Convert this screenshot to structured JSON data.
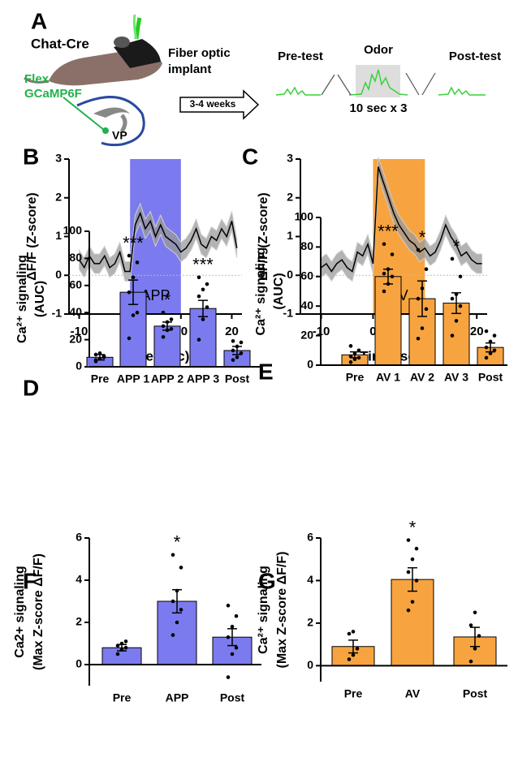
{
  "panel_a": {
    "label": "A",
    "strain": "Chat-Cre",
    "implant": [
      "Fiber optic",
      "implant"
    ],
    "virus": [
      "Flex-",
      "GCaMP6F"
    ],
    "region": "VP",
    "delay": "3-4 weeks",
    "phases": [
      "Pre-test",
      "Odor",
      "Post-test"
    ],
    "protocol": "10 sec x 3"
  },
  "chart_data": [
    {
      "type": "line",
      "panel": "B",
      "xlabel": "Time (sec)",
      "ylabel": [
        "ΔF/F (Z-score)"
      ],
      "color": "#000000",
      "band_color": "#9a9a9a",
      "x": [
        -10,
        -9,
        -8,
        -7,
        -6,
        -5,
        -4,
        -3,
        -2,
        -1,
        0,
        1,
        2,
        3,
        4,
        5,
        6,
        7,
        8,
        9,
        10,
        11,
        12,
        13,
        14,
        15,
        16,
        17,
        18,
        19,
        20,
        21
      ],
      "values": [
        0.4,
        0.2,
        0.5,
        0.3,
        0.3,
        0.5,
        0.2,
        0.3,
        0.6,
        0.1,
        0.1,
        1.3,
        1.6,
        1.2,
        1.4,
        1.0,
        1.3,
        1.0,
        0.9,
        0.8,
        0.6,
        0.7,
        0.9,
        1.2,
        0.8,
        0.7,
        1.0,
        0.9,
        1.2,
        1.0,
        1.4,
        0.7
      ],
      "sem": 0.25,
      "highlight": {
        "from": 0,
        "to": 10,
        "label": "APP",
        "color": "#7b7bef"
      },
      "xlim": [
        -12,
        22
      ],
      "xticks": [
        -10,
        0,
        10,
        20
      ],
      "ylim": [
        -1,
        3
      ],
      "yticks": [
        -1,
        0,
        1,
        2,
        3
      ]
    },
    {
      "type": "line",
      "panel": "C",
      "xlabel": "Time (sec)",
      "ylabel": [
        "ΔF/F (Z-score)"
      ],
      "color": "#000000",
      "band_color": "#9a9a9a",
      "x": [
        -10,
        -9,
        -8,
        -7,
        -6,
        -5,
        -4,
        -3,
        -2,
        -1,
        0,
        1,
        2,
        3,
        4,
        5,
        6,
        7,
        8,
        9,
        10,
        11,
        12,
        13,
        14,
        15,
        16,
        17,
        18,
        19,
        20,
        21
      ],
      "values": [
        0.2,
        0.3,
        0.1,
        0.3,
        0.4,
        0.2,
        0.1,
        0.6,
        0.5,
        0.8,
        0.3,
        2.8,
        2.4,
        2.0,
        1.6,
        1.3,
        1.1,
        0.9,
        0.8,
        0.6,
        0.7,
        0.5,
        0.6,
        0.9,
        1.3,
        1.0,
        0.8,
        0.5,
        0.6,
        0.4,
        0.3,
        0.3
      ],
      "sem": 0.25,
      "highlight": {
        "from": 0,
        "to": 10,
        "label": "AV",
        "color": "#f7a440"
      },
      "xlim": [
        -14,
        22
      ],
      "xticks": [
        -10,
        0,
        10,
        20
      ],
      "ylim": [
        -1,
        3
      ],
      "yticks": [
        -1,
        0,
        1,
        2,
        3
      ]
    },
    {
      "type": "bar",
      "panel": "D",
      "ylabel": [
        "Ca²⁺ signaling",
        "(AUC)"
      ],
      "color": "#7b7bef",
      "categories": [
        "Pre",
        "APP 1",
        "APP 2",
        "APP 3",
        "Post"
      ],
      "values": [
        7,
        55,
        30,
        43,
        12
      ],
      "errors": [
        2,
        9,
        3,
        6,
        3
      ],
      "points": [
        [
          4,
          6,
          8,
          9,
          10,
          7,
          5
        ],
        [
          21,
          38,
          40,
          55,
          66,
          77,
          82
        ],
        [
          22,
          27,
          28,
          30,
          33,
          35,
          40
        ],
        [
          20,
          35,
          44,
          52,
          57,
          61,
          66
        ],
        [
          5,
          7,
          10,
          12,
          15,
          18,
          19
        ]
      ],
      "annotations": [
        null,
        "***",
        "*",
        "***",
        null
      ],
      "ylim": [
        0,
        100
      ],
      "yticks": [
        0,
        20,
        40,
        60,
        80,
        100
      ]
    },
    {
      "type": "bar",
      "panel": "E",
      "ylabel": [
        "Ca²⁺ signaling",
        "(AUC)"
      ],
      "color": "#f7a440",
      "categories": [
        "Pre",
        "AV 1",
        "AV 2",
        "AV 3",
        "Post"
      ],
      "values": [
        7,
        60,
        45,
        42,
        12
      ],
      "errors": [
        2,
        5,
        12,
        7,
        3
      ],
      "points": [
        [
          2,
          4,
          5,
          6,
          8,
          10,
          13
        ],
        [
          50,
          55,
          60,
          62,
          65,
          75,
          82
        ],
        [
          18,
          25,
          38,
          45,
          52,
          65,
          78
        ],
        [
          20,
          30,
          40,
          45,
          48,
          60,
          72
        ],
        [
          5,
          8,
          10,
          12,
          16,
          20,
          23
        ]
      ],
      "annotations": [
        null,
        "***",
        "*",
        "*",
        null
      ],
      "ylim": [
        0,
        100
      ],
      "yticks": [
        0,
        20,
        40,
        60,
        80,
        100
      ]
    },
    {
      "type": "bar",
      "panel": "F",
      "ylabel": [
        "Ca2+ signaling",
        "(Max Z-score ΔF/F)"
      ],
      "color": "#7b7bef",
      "categories": [
        "Pre",
        "APP",
        "Post"
      ],
      "values": [
        0.8,
        3.0,
        1.3
      ],
      "errors": [
        0.15,
        0.55,
        0.4
      ],
      "points": [
        [
          0.5,
          0.7,
          0.8,
          0.9,
          1.0,
          1.1
        ],
        [
          1.4,
          2.0,
          2.6,
          3.0,
          3.5,
          4.6,
          5.2
        ],
        [
          -0.6,
          0.5,
          0.8,
          1.3,
          1.8,
          2.3,
          2.8
        ]
      ],
      "annotations": [
        null,
        "*",
        null
      ],
      "ylim": [
        -1,
        6
      ],
      "yticks": [
        0,
        2,
        4,
        6
      ]
    },
    {
      "type": "bar",
      "panel": "G",
      "ylabel": [
        "Ca²⁺ signaling",
        "(Max  Z-score ΔF/F)"
      ],
      "color": "#f7a440",
      "categories": [
        "Pre",
        "AV",
        "Post"
      ],
      "values": [
        0.9,
        4.05,
        1.35
      ],
      "errors": [
        0.3,
        0.55,
        0.45
      ],
      "points": [
        [
          0.3,
          0.5,
          0.8,
          1.5,
          1.6
        ],
        [
          2.6,
          3.0,
          4.0,
          4.4,
          5.0,
          5.5,
          5.9
        ],
        [
          0.2,
          0.8,
          1.4,
          1.9,
          2.5
        ]
      ],
      "annotations": [
        null,
        "*",
        null
      ],
      "ylim": [
        -0.75,
        6
      ],
      "yticks": [
        0,
        2,
        4,
        6
      ]
    }
  ]
}
